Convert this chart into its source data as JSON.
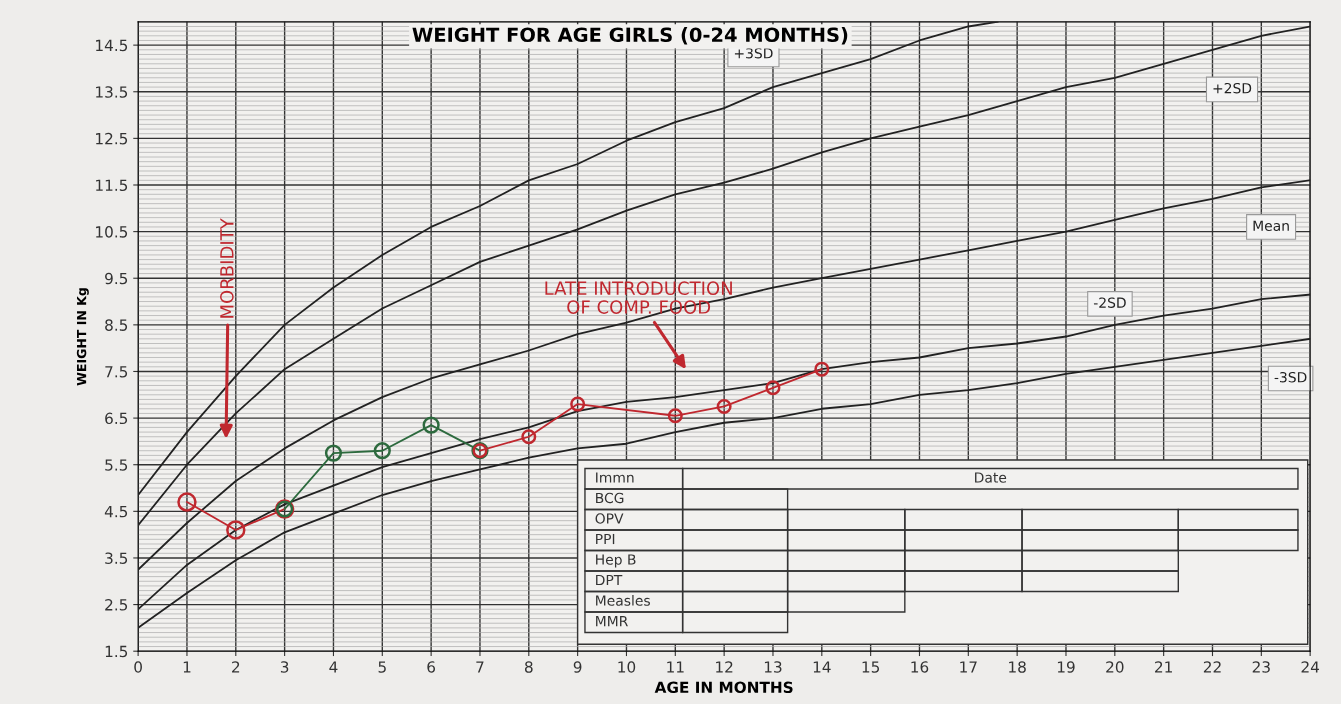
{
  "chart_data": {
    "type": "line",
    "title": "WEIGHT FOR AGE GIRLS (0-24 MONTHS)",
    "xlabel": "AGE IN MONTHS",
    "ylabel": "WEIGHT IN Kg",
    "xlim": [
      0,
      24
    ],
    "ylim": [
      1.5,
      15.0
    ],
    "xticks": [
      0,
      1,
      2,
      3,
      4,
      5,
      6,
      7,
      8,
      9,
      10,
      11,
      12,
      13,
      14,
      15,
      16,
      17,
      18,
      19,
      20,
      21,
      22,
      23,
      24
    ],
    "yticks": [
      1.5,
      2.5,
      3.5,
      4.5,
      5.5,
      6.5,
      7.5,
      8.5,
      9.5,
      10.5,
      11.5,
      12.5,
      13.5,
      14.5
    ],
    "grid": true,
    "series": [
      {
        "name": "+3SD",
        "color": "#222222",
        "x": [
          0,
          1,
          2,
          3,
          4,
          5,
          6,
          7,
          8,
          9,
          10,
          11,
          12,
          13,
          14,
          15,
          16,
          17,
          17.6
        ],
        "values": [
          4.85,
          6.2,
          7.4,
          8.5,
          9.3,
          10.0,
          10.6,
          11.05,
          11.6,
          11.95,
          12.45,
          12.85,
          13.15,
          13.6,
          13.9,
          14.2,
          14.6,
          14.9,
          15.0
        ]
      },
      {
        "name": "+2SD",
        "color": "#222222",
        "x": [
          0,
          1,
          2,
          3,
          4,
          5,
          6,
          7,
          8,
          9,
          10,
          11,
          12,
          13,
          14,
          15,
          16,
          17,
          18,
          19,
          20,
          21,
          22,
          23,
          24
        ],
        "values": [
          4.2,
          5.5,
          6.6,
          7.55,
          8.2,
          8.85,
          9.35,
          9.85,
          10.2,
          10.55,
          10.95,
          11.3,
          11.55,
          11.85,
          12.2,
          12.5,
          12.75,
          13.0,
          13.3,
          13.6,
          13.8,
          14.1,
          14.4,
          14.7,
          14.9
        ]
      },
      {
        "name": "Mean",
        "color": "#222222",
        "x": [
          0,
          1,
          2,
          3,
          4,
          5,
          6,
          7,
          8,
          9,
          10,
          11,
          12,
          13,
          14,
          15,
          16,
          17,
          18,
          19,
          20,
          21,
          22,
          23,
          24
        ],
        "values": [
          3.25,
          4.25,
          5.15,
          5.85,
          6.45,
          6.95,
          7.35,
          7.65,
          7.95,
          8.3,
          8.55,
          8.85,
          9.05,
          9.3,
          9.5,
          9.7,
          9.9,
          10.1,
          10.3,
          10.5,
          10.75,
          11.0,
          11.2,
          11.45,
          11.6
        ]
      },
      {
        "name": "-2SD",
        "color": "#222222",
        "x": [
          0,
          1,
          2,
          3,
          4,
          5,
          6,
          7,
          8,
          9,
          10,
          11,
          12,
          13,
          14,
          15,
          16,
          17,
          18,
          19,
          20,
          21,
          22,
          23,
          24
        ],
        "values": [
          2.4,
          3.35,
          4.1,
          4.65,
          5.05,
          5.45,
          5.75,
          6.05,
          6.3,
          6.65,
          6.85,
          6.95,
          7.1,
          7.25,
          7.55,
          7.7,
          7.8,
          8.0,
          8.1,
          8.25,
          8.5,
          8.7,
          8.85,
          9.05,
          9.15
        ]
      },
      {
        "name": "-3SD",
        "color": "#222222",
        "x": [
          0,
          1,
          2,
          3,
          4,
          5,
          6,
          7,
          8,
          9,
          10,
          11,
          12,
          13,
          14,
          15,
          16,
          17,
          18,
          19,
          20,
          21,
          22,
          23,
          24
        ],
        "values": [
          2.0,
          2.75,
          3.45,
          4.05,
          4.45,
          4.85,
          5.15,
          5.4,
          5.65,
          5.85,
          5.95,
          6.2,
          6.4,
          6.5,
          6.7,
          6.8,
          7.0,
          7.1,
          7.25,
          7.45,
          7.6,
          7.75,
          7.9,
          8.05,
          8.2
        ]
      },
      {
        "color": "#c0282f",
        "marker": "circle",
        "x": [
          1,
          2,
          3
        ],
        "values": [
          4.7,
          4.1,
          4.55
        ]
      },
      {
        "color": "#2d6a3e",
        "marker": "circle",
        "x": [
          3,
          4,
          5,
          6,
          7
        ],
        "values": [
          4.55,
          5.75,
          5.8,
          6.35,
          5.8
        ]
      },
      {
        "color": "#c0282f",
        "marker": "circle",
        "x": [
          7,
          8,
          9,
          11,
          12,
          13,
          14
        ],
        "values": [
          5.8,
          6.1,
          6.8,
          6.55,
          6.75,
          7.15,
          7.55
        ]
      }
    ],
    "annotations": [
      "MORBIDITY",
      "LATE INTRODUCTION\nOF COMP. FOOD",
      "Immn",
      "Date",
      "BCG",
      "OPV",
      "PPI",
      "Hep B",
      "DPT",
      "Measles",
      "MMR"
    ]
  }
}
